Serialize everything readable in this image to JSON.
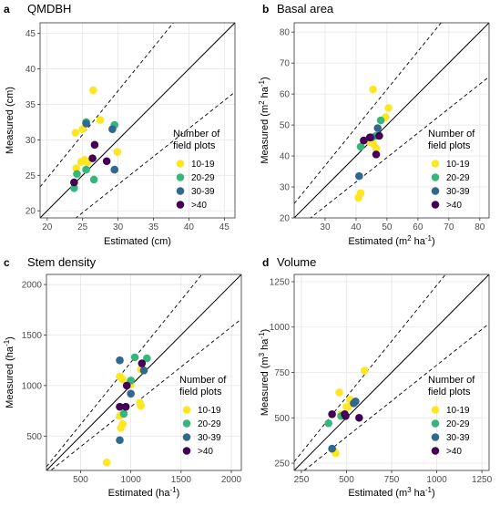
{
  "figure": {
    "legend_title_lines": [
      "Number of",
      "field plots"
    ],
    "legend_items": [
      {
        "label": "10-19",
        "color": "#FDE725"
      },
      {
        "label": "20-29",
        "color": "#35B779"
      },
      {
        "label": "30-39",
        "color": "#31688E"
      },
      {
        "label": ">40",
        "color": "#440154"
      }
    ]
  },
  "chart_data": [
    {
      "type": "scatter",
      "panel_letter": "a",
      "title": "QMDBH",
      "xlabel": "Estimated (cm)",
      "ylabel": "Measured (cm)",
      "xlim": [
        19,
        46.5
      ],
      "ylim": [
        19,
        46.5
      ],
      "xticks": [
        20,
        25,
        30,
        35,
        40,
        45
      ],
      "yticks": [
        20,
        25,
        30,
        35,
        40,
        45
      ],
      "reference_lines": [
        "1:1 line (solid)",
        "upper bound (dashed)",
        "lower bound (dashed)"
      ],
      "series": [
        {
          "name": "10-19",
          "color": "#FDE725",
          "points": [
            [
              26.5,
              37.0
            ],
            [
              24.0,
              31.0
            ],
            [
              25.0,
              31.5
            ],
            [
              27.5,
              32.8
            ],
            [
              25.3,
              27.2
            ],
            [
              25.7,
              26.8
            ],
            [
              29.9,
              28.3
            ],
            [
              24.8,
              26.9
            ],
            [
              24.1,
              26.0
            ]
          ]
        },
        {
          "name": "20-29",
          "color": "#35B779",
          "points": [
            [
              25.5,
              32.5
            ],
            [
              29.5,
              32.1
            ],
            [
              24.2,
              25.2
            ],
            [
              26.6,
              24.4
            ],
            [
              23.8,
              23.2
            ],
            [
              25.5,
              25.8
            ]
          ]
        },
        {
          "name": "30-39",
          "color": "#31688E",
          "points": [
            [
              29.2,
              31.5
            ],
            [
              29.5,
              25.8
            ],
            [
              25.5,
              32.3
            ]
          ]
        },
        {
          "name": ">40",
          "color": "#440154",
          "points": [
            [
              26.7,
              29.3
            ],
            [
              26.4,
              27.4
            ],
            [
              28.4,
              27.0
            ],
            [
              23.8,
              24.0
            ]
          ]
        }
      ]
    },
    {
      "type": "scatter",
      "panel_letter": "b",
      "title": "Basal area",
      "xlabel": "Estimated (m² ha⁻¹)",
      "ylabel": "Measured (m² ha⁻¹)",
      "xlim": [
        20,
        83
      ],
      "ylim": [
        20,
        83
      ],
      "xticks": [
        30,
        40,
        50,
        60,
        70,
        80
      ],
      "yticks": [
        20,
        30,
        40,
        50,
        60,
        70,
        80
      ],
      "reference_lines": [
        "1:1 line (solid)",
        "upper bound (dashed)",
        "lower bound (dashed)"
      ],
      "series": [
        {
          "name": "10-19",
          "color": "#FDE725",
          "points": [
            [
              45.5,
              61.5
            ],
            [
              50.5,
              55.5
            ],
            [
              49.5,
              52.5
            ],
            [
              44.5,
              44.5
            ],
            [
              45.5,
              44.0
            ],
            [
              46.5,
              42.5
            ],
            [
              41.5,
              28.0
            ],
            [
              40.8,
              26.5
            ]
          ]
        },
        {
          "name": "20-29",
          "color": "#35B779",
          "points": [
            [
              41.5,
              43.0
            ],
            [
              48.0,
              51.5
            ],
            [
              46.5,
              46.5
            ]
          ]
        },
        {
          "name": "30-39",
          "color": "#31688E",
          "points": [
            [
              47.0,
              49.0
            ],
            [
              41.0,
              33.5
            ],
            [
              45.0,
              46.0
            ]
          ]
        },
        {
          "name": ">40",
          "color": "#440154",
          "points": [
            [
              42.5,
              45.0
            ],
            [
              44.5,
              46.0
            ],
            [
              47.5,
              46.5
            ],
            [
              46.5,
              40.5
            ]
          ]
        }
      ]
    },
    {
      "type": "scatter",
      "panel_letter": "c",
      "title": "Stem density",
      "xlabel": "Estimated (ha⁻¹)",
      "ylabel": "Measured (ha⁻¹)",
      "xlim": [
        160,
        2100
      ],
      "ylim": [
        160,
        2100
      ],
      "xticks": [
        500,
        1000,
        1500,
        2000
      ],
      "yticks": [
        500,
        1000,
        1500,
        2000
      ],
      "reference_lines": [
        "1:1 line (solid)",
        "upper bound (dashed)",
        "lower bound (dashed)"
      ],
      "series": [
        {
          "name": "10-19",
          "color": "#FDE725",
          "points": [
            [
              890,
              1090
            ],
            [
              920,
              1060
            ],
            [
              1000,
              1010
            ],
            [
              1100,
              1160
            ],
            [
              1090,
              830
            ],
            [
              1100,
              800
            ],
            [
              890,
              700
            ],
            [
              920,
              620
            ],
            [
              900,
              580
            ],
            [
              760,
              240
            ]
          ]
        },
        {
          "name": "20-29",
          "color": "#35B779",
          "points": [
            [
              1040,
              1280
            ],
            [
              1160,
              1270
            ],
            [
              930,
              720
            ],
            [
              1000,
              1050
            ]
          ]
        },
        {
          "name": "30-39",
          "color": "#31688E",
          "points": [
            [
              890,
              1250
            ],
            [
              1000,
              920
            ],
            [
              890,
              460
            ],
            [
              1130,
              1150
            ]
          ]
        },
        {
          "name": ">40",
          "color": "#440154",
          "points": [
            [
              1110,
              1220
            ],
            [
              960,
              1000
            ],
            [
              890,
              790
            ],
            [
              950,
              790
            ]
          ]
        }
      ]
    },
    {
      "type": "scatter",
      "panel_letter": "d",
      "title": "Volume",
      "xlabel": "Estimated (m³ ha⁻¹)",
      "ylabel": "Measured (m³ ha⁻¹)",
      "xlim": [
        210,
        1290
      ],
      "ylim": [
        210,
        1290
      ],
      "xticks": [
        250,
        500,
        750,
        1000,
        1250
      ],
      "yticks": [
        250,
        500,
        750,
        1000,
        1250
      ],
      "reference_lines": [
        "1:1 line (solid)",
        "upper bound (dashed)",
        "lower bound (dashed)"
      ],
      "series": [
        {
          "name": "10-19",
          "color": "#FDE725",
          "points": [
            [
              600,
              760
            ],
            [
              460,
              640
            ],
            [
              520,
              600
            ],
            [
              500,
              560
            ],
            [
              510,
              560
            ],
            [
              470,
              520
            ],
            [
              430,
              320
            ],
            [
              440,
              305
            ]
          ]
        },
        {
          "name": "20-29",
          "color": "#35B779",
          "points": [
            [
              400,
              470
            ],
            [
              470,
              510
            ]
          ]
        },
        {
          "name": "30-39",
          "color": "#31688E",
          "points": [
            [
              550,
              590
            ],
            [
              540,
              580
            ],
            [
              420,
              330
            ]
          ]
        },
        {
          "name": ">40",
          "color": "#440154",
          "points": [
            [
              420,
              520
            ],
            [
              490,
              520
            ],
            [
              570,
              500
            ],
            [
              495,
              510
            ]
          ]
        }
      ]
    }
  ]
}
